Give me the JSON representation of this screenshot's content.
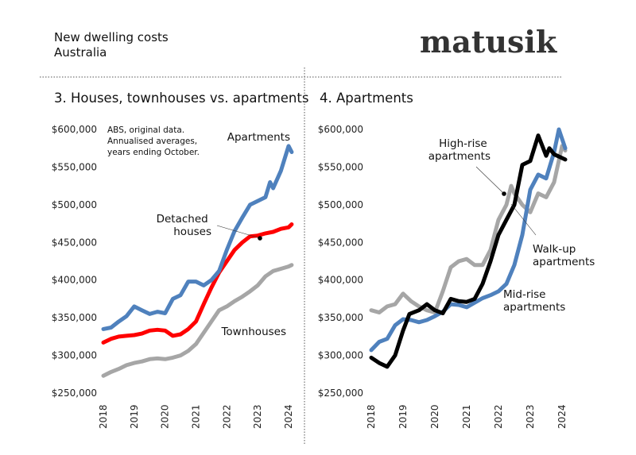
{
  "header": {
    "title": "New dwelling costs",
    "subtitle": "Australia",
    "logo": "matusik"
  },
  "chart_data": [
    {
      "type": "line",
      "title": "3. Houses, townhouses vs. apartments",
      "note": [
        "ABS, original data.",
        "Annualised averages,",
        "years ending October."
      ],
      "xlim": [
        2018,
        2024.1
      ],
      "ylim": [
        250000,
        600000
      ],
      "x_ticks": [
        "2018",
        "2019",
        "2020",
        "2021",
        "2022",
        "2023",
        "2024"
      ],
      "y_ticks": [
        "$250,000",
        "$300,000",
        "$350,000",
        "$400,000",
        "$450,000",
        "$500,000",
        "$550,000",
        "$600,000"
      ],
      "grid": false,
      "series": [
        {
          "name": "Apartments",
          "color": "#4f81bd",
          "x": [
            2018,
            2018.25,
            2018.5,
            2018.75,
            2019,
            2019.25,
            2019.5,
            2019.75,
            2020,
            2020.25,
            2020.5,
            2020.75,
            2021,
            2021.25,
            2021.5,
            2021.75,
            2022,
            2022.25,
            2022.5,
            2022.75,
            2023,
            2023.25,
            2023.4,
            2023.5,
            2023.75,
            2024,
            2024.1
          ],
          "y": [
            335000,
            337000,
            345000,
            352000,
            365000,
            360000,
            355000,
            358000,
            356000,
            375000,
            380000,
            398000,
            398000,
            393000,
            400000,
            412000,
            440000,
            465000,
            483000,
            500000,
            505000,
            510000,
            530000,
            522000,
            545000,
            578000,
            570000
          ]
        },
        {
          "name": "Detached houses",
          "color": "#ff0000",
          "x": [
            2018,
            2018.25,
            2018.5,
            2018.75,
            2019,
            2019.25,
            2019.5,
            2019.75,
            2020,
            2020.25,
            2020.5,
            2020.75,
            2021,
            2021.25,
            2021.5,
            2021.75,
            2022,
            2022.25,
            2022.5,
            2022.75,
            2023,
            2023.25,
            2023.5,
            2023.75,
            2024,
            2024.1
          ],
          "y": [
            317000,
            322000,
            325000,
            326000,
            327000,
            329000,
            333000,
            334000,
            333000,
            326000,
            328000,
            335000,
            345000,
            368000,
            390000,
            410000,
            425000,
            440000,
            450000,
            458000,
            459000,
            462000,
            464000,
            468000,
            470000,
            474000
          ]
        },
        {
          "name": "Townhouses",
          "color": "#a6a6a6",
          "x": [
            2018,
            2018.25,
            2018.5,
            2018.75,
            2019,
            2019.25,
            2019.5,
            2019.75,
            2020,
            2020.25,
            2020.5,
            2020.75,
            2021,
            2021.25,
            2021.5,
            2021.75,
            2022,
            2022.25,
            2022.5,
            2022.75,
            2023,
            2023.25,
            2023.5,
            2023.75,
            2024,
            2024.1
          ],
          "y": [
            273000,
            278000,
            282000,
            287000,
            290000,
            292000,
            295000,
            296000,
            295000,
            297000,
            300000,
            306000,
            315000,
            330000,
            345000,
            360000,
            365000,
            372000,
            378000,
            385000,
            393000,
            405000,
            412000,
            415000,
            418000,
            420000
          ]
        }
      ],
      "annotations": [
        "Apartments",
        "Detached houses",
        "Townhouses"
      ]
    },
    {
      "type": "line",
      "title": "4. Apartments",
      "xlim": [
        2018,
        2024.1
      ],
      "ylim": [
        250000,
        600000
      ],
      "x_ticks": [
        "2018",
        "2019",
        "2020",
        "2021",
        "2022",
        "2023",
        "2024"
      ],
      "y_ticks": [
        "$250,000",
        "$300,000",
        "$350,000",
        "$400,000",
        "$450,000",
        "$500,000",
        "$550,000",
        "$600,000"
      ],
      "grid": false,
      "series": [
        {
          "name": "Mid-rise apartments",
          "color": "#4f81bd",
          "x": [
            2018,
            2018.25,
            2018.5,
            2018.75,
            2019,
            2019.25,
            2019.5,
            2019.75,
            2020,
            2020.25,
            2020.5,
            2020.75,
            2021,
            2021.25,
            2021.5,
            2021.75,
            2022,
            2022.25,
            2022.5,
            2022.75,
            2023,
            2023.25,
            2023.5,
            2023.75,
            2023.9,
            2024.1
          ],
          "y": [
            307000,
            318000,
            322000,
            340000,
            348000,
            347000,
            344000,
            347000,
            352000,
            358000,
            368000,
            367000,
            364000,
            370000,
            376000,
            380000,
            385000,
            395000,
            420000,
            460000,
            520000,
            540000,
            535000,
            570000,
            600000,
            575000
          ]
        },
        {
          "name": "High-rise apartments",
          "color": "#a6a6a6",
          "x": [
            2018,
            2018.25,
            2018.5,
            2018.75,
            2019,
            2019.25,
            2019.5,
            2019.75,
            2020,
            2020.25,
            2020.5,
            2020.75,
            2021,
            2021.25,
            2021.5,
            2021.75,
            2022,
            2022.25,
            2022.4,
            2022.5,
            2022.75,
            2023,
            2023.25,
            2023.5,
            2023.75,
            2024,
            2024.1
          ],
          "y": [
            360000,
            357000,
            365000,
            368000,
            382000,
            372000,
            365000,
            360000,
            357000,
            385000,
            417000,
            425000,
            428000,
            420000,
            420000,
            440000,
            480000,
            500000,
            525000,
            515000,
            500000,
            490000,
            515000,
            510000,
            530000,
            578000,
            572000
          ]
        },
        {
          "name": "Walk-up apartments",
          "color": "#000000",
          "x": [
            2018,
            2018.25,
            2018.5,
            2018.75,
            2019,
            2019.2,
            2019.5,
            2019.75,
            2020,
            2020.25,
            2020.5,
            2020.75,
            2021,
            2021.25,
            2021.5,
            2021.75,
            2022,
            2022.25,
            2022.5,
            2022.75,
            2023,
            2023.25,
            2023.5,
            2023.6,
            2023.75,
            2024,
            2024.1
          ],
          "y": [
            297000,
            290000,
            285000,
            300000,
            333000,
            355000,
            360000,
            368000,
            360000,
            356000,
            375000,
            372000,
            371000,
            375000,
            395000,
            425000,
            460000,
            480000,
            500000,
            553000,
            558000,
            592000,
            565000,
            575000,
            567000,
            562000,
            560000
          ]
        }
      ],
      "annotations": [
        "High-rise apartments",
        "Walk-up apartments",
        "Mid-rise apartments"
      ]
    }
  ]
}
